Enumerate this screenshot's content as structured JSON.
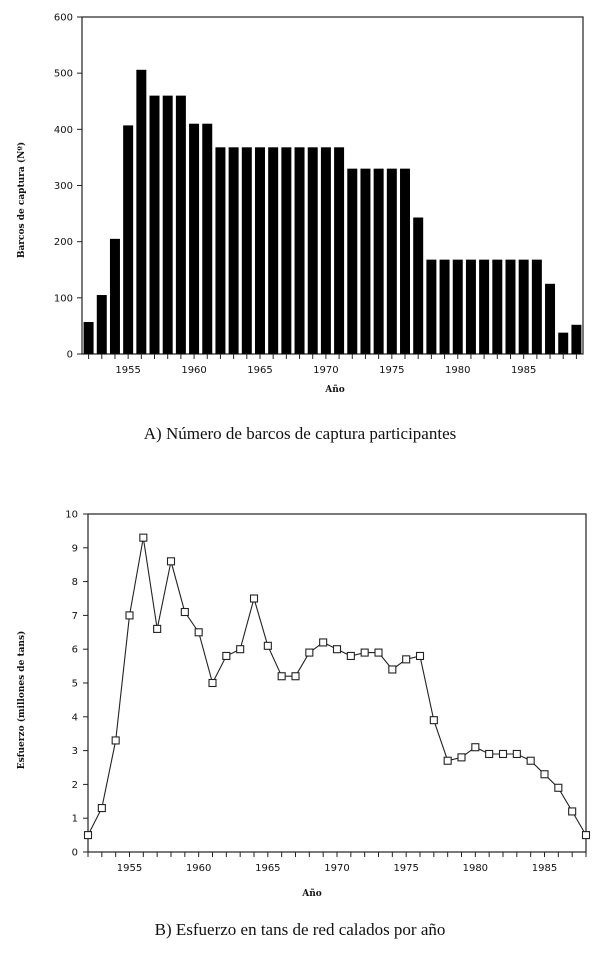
{
  "chart_data": [
    {
      "id": "A",
      "type": "bar",
      "caption": "A) Número de barcos de captura participantes",
      "xlabel": "Año",
      "ylabel": "Barcos de captura (Nº)",
      "ylim": [
        0,
        600
      ],
      "yticks": [
        0,
        100,
        200,
        300,
        400,
        500,
        600
      ],
      "xtick_labels": [
        "1955",
        "1960",
        "1965",
        "1970",
        "1975",
        "1980",
        "1985"
      ],
      "grid": false,
      "bar_color": "#000000",
      "categories": [
        1952,
        1953,
        1954,
        1955,
        1956,
        1957,
        1958,
        1959,
        1960,
        1961,
        1962,
        1963,
        1964,
        1965,
        1966,
        1967,
        1968,
        1969,
        1970,
        1971,
        1972,
        1973,
        1974,
        1975,
        1976,
        1977,
        1978,
        1979,
        1980,
        1981,
        1982,
        1983,
        1984,
        1985,
        1986,
        1987,
        1988,
        1989
      ],
      "values": [
        57,
        105,
        205,
        407,
        506,
        460,
        460,
        460,
        410,
        410,
        368,
        368,
        368,
        368,
        368,
        368,
        368,
        368,
        368,
        368,
        330,
        330,
        330,
        330,
        330,
        243,
        168,
        168,
        168,
        168,
        168,
        168,
        168,
        168,
        168,
        125,
        38,
        52
      ]
    },
    {
      "id": "B",
      "type": "line",
      "caption": "B) Esfuerzo en tans de red calados por año",
      "xlabel": "Año",
      "ylabel": "Esfuerzo (millones de tans)",
      "ylim": [
        0,
        10
      ],
      "yticks": [
        0,
        1,
        2,
        3,
        4,
        5,
        6,
        7,
        8,
        9,
        10
      ],
      "xtick_labels": [
        "1955",
        "1960",
        "1965",
        "1970",
        "1975",
        "1980",
        "1985"
      ],
      "grid": false,
      "marker": "open-square",
      "x": [
        1952,
        1953,
        1954,
        1955,
        1956,
        1957,
        1958,
        1959,
        1960,
        1961,
        1962,
        1963,
        1964,
        1965,
        1966,
        1967,
        1968,
        1969,
        1970,
        1971,
        1972,
        1973,
        1974,
        1975,
        1976,
        1977,
        1978,
        1979,
        1980,
        1981,
        1982,
        1983,
        1984,
        1985,
        1986,
        1987,
        1988
      ],
      "values": [
        0.5,
        1.3,
        3.3,
        7.0,
        9.3,
        6.6,
        8.6,
        7.1,
        6.5,
        5.0,
        5.8,
        6.0,
        7.5,
        6.1,
        5.2,
        5.2,
        5.9,
        6.2,
        6.0,
        5.8,
        5.9,
        5.9,
        5.4,
        5.7,
        5.8,
        3.9,
        2.7,
        2.8,
        3.1,
        2.9,
        2.9,
        2.9,
        2.7,
        2.3,
        1.9,
        1.2,
        0.5
      ]
    }
  ]
}
